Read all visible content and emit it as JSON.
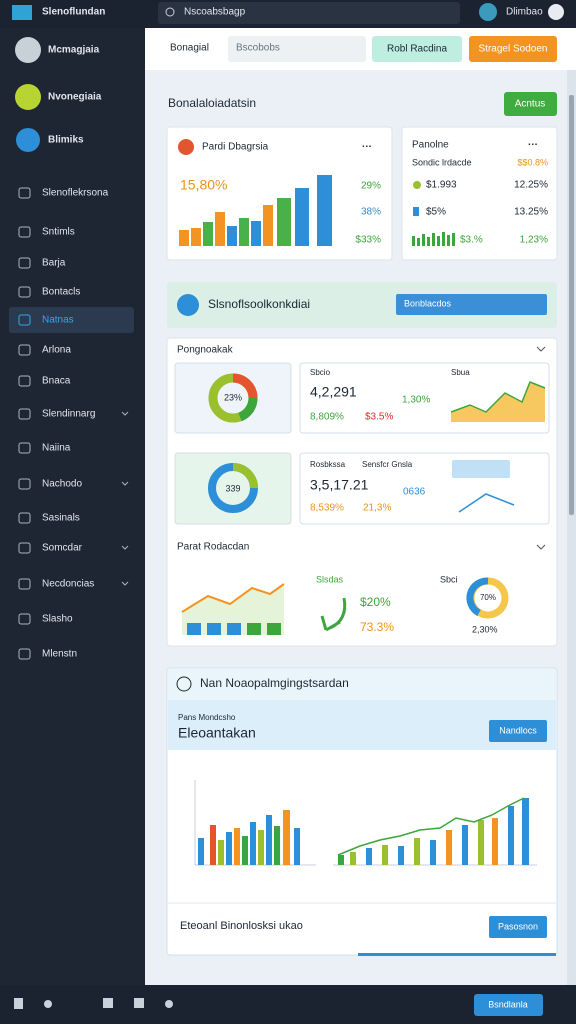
{
  "topbar": {
    "brand": "Slenoflundan",
    "search": "Nscoabsbagp",
    "user": "Dlimbao"
  },
  "sidebar": {
    "profiles": [
      "Mcmagjaia",
      "Nvonegiaia",
      "Blimiks"
    ],
    "nav": [
      "Slenoflekrsona",
      "Sntimls",
      "Barja",
      "Bontacls",
      "Natnas",
      "Arlona",
      "Bnaca",
      "Slendinnarg",
      "Naiina",
      "Nachodo",
      "Sasinals",
      "Somcdar",
      "Necdoncias",
      "Slasho",
      "Mlenstn"
    ]
  },
  "header": {
    "tab": "Bonagial",
    "input": "Bscobobs",
    "button_1": "Robl Racdina",
    "button_2": "Stragel Sodoen"
  },
  "overview": {
    "title": "Bonalaloiadatsin",
    "action": "Acntus",
    "card_1": {
      "title": "Pardi Dbagrsia",
      "value": "15,80%",
      "stats": [
        "29%",
        "38%",
        "$33%"
      ]
    },
    "card_2": {
      "title": "Panolne",
      "subtitle": "Sondic lrdacde",
      "highlight": "$$0.8%",
      "rows": [
        [
          "$1.993",
          "12.25%"
        ],
        [
          "$5%",
          "13.25%"
        ],
        [
          "$3.%",
          "1,23%"
        ]
      ]
    }
  },
  "banner": {
    "title": "Slsnoflsoolkonkdiai",
    "select": "Bonblacdos"
  },
  "panel": {
    "title": "Pongnoakak",
    "row_1": {
      "donut": "23%",
      "label": "Sbcio",
      "chart_label": "Sbua",
      "value": "4,2,291",
      "change": "1,30%",
      "stat_1": "8,809%",
      "stat_2": "$3.5%"
    },
    "row_2": {
      "donut": "339",
      "label_1": "Rosbkssa",
      "label_2": "Sensfcr Gnsla",
      "value": "3,5,17.21",
      "change": "0636",
      "stat_1": "8,539%",
      "stat_2": "21,3%"
    },
    "section": "Parat Rodacdan",
    "row_3": {
      "label": "Slsdas",
      "label_2": "Sbci",
      "stat_1": "$20%",
      "stat_2": "73.3%",
      "donut": "70%",
      "value": "2,30%"
    }
  },
  "report": {
    "title": "Nan Noaopalmgingstsardan",
    "subtitle": "Pans Mondcsho",
    "heading": "Eleoantakan",
    "button": "Nandlocs",
    "footer": "Eteoanl Binonlosksi ukao",
    "footer_button": "Pasosnon"
  },
  "bottombar": {
    "button": "Bsndlanla"
  }
}
